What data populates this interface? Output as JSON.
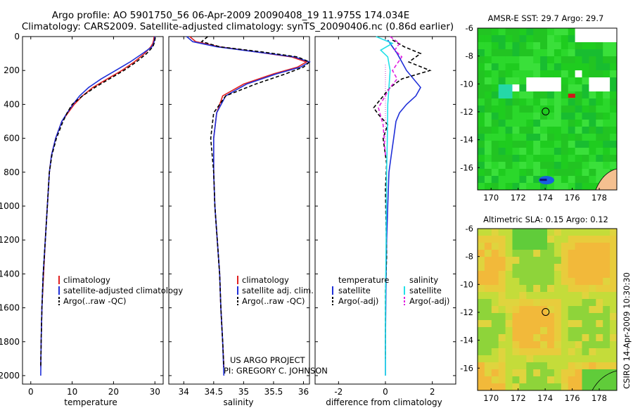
{
  "header": {
    "line1": "Argo profile: AO 5901750_56 06-Apr-2009 20090408_19 11.975S 174.034E",
    "line2": "Climatology: CARS2009. Satellite-adjusted climatology: synTS_20090406.nc (0.86d earlier)"
  },
  "footer": {
    "project": "US ARGO PROJECT",
    "pi": "PI: GREGORY C. JOHNSON",
    "stamp": "CSIRO 14-Apr-2009 10:30:30"
  },
  "colors": {
    "climatology": "#e02020",
    "satellite": "#1f2fd8",
    "argo": "#000000",
    "salinity_satellite": "#22e0e8",
    "salinity_argo": "#e020e0"
  },
  "chart_data": [
    {
      "id": "temperature",
      "type": "line",
      "xlabel": "temperature",
      "ylabel": "",
      "xlim": [
        -2,
        32
      ],
      "ylim": [
        2050,
        0
      ],
      "xticks": [
        0,
        10,
        20,
        30
      ],
      "xtick_labels": [
        "0",
        "10",
        "20",
        "30"
      ],
      "yticks": [
        0,
        200,
        400,
        600,
        800,
        1000,
        1200,
        1400,
        1600,
        1800,
        2000
      ],
      "ytick_labels": [
        "0",
        "200",
        "400",
        "600",
        "800",
        "1000",
        "1200",
        "1400",
        "1600",
        "1800",
        "2000"
      ],
      "legend": [
        "climatology",
        "satellite-adjusted climatology",
        "Argo(..raw -QC)"
      ],
      "legend_position": "lower-right",
      "series": [
        {
          "name": "climatology",
          "x": [
            29.8,
            29.7,
            29.5,
            29.0,
            27.5,
            25.0,
            22.0,
            18.5,
            15.0,
            12.5,
            10.5,
            9.0,
            7.5,
            6.0,
            5.0,
            4.5,
            4.0,
            3.5,
            3.1,
            2.7,
            2.5,
            2.4
          ],
          "y": [
            0,
            20,
            40,
            60,
            100,
            150,
            200,
            250,
            300,
            350,
            400,
            450,
            500,
            600,
            700,
            800,
            1000,
            1200,
            1400,
            1600,
            1800,
            1950
          ]
        },
        {
          "name": "satellite",
          "x": [
            30.0,
            29.9,
            29.7,
            29.3,
            27.0,
            24.0,
            20.5,
            17.0,
            14.0,
            11.8,
            10.2,
            8.8,
            7.5,
            6.0,
            5.0,
            4.5,
            4.0,
            3.5,
            3.0,
            2.7,
            2.5,
            2.4
          ],
          "y": [
            0,
            20,
            40,
            60,
            100,
            150,
            200,
            250,
            300,
            350,
            400,
            450,
            500,
            600,
            700,
            800,
            1000,
            1200,
            1400,
            1600,
            1800,
            2000
          ]
        },
        {
          "name": "Argo",
          "x": [
            30.1,
            30.0,
            29.8,
            29.5,
            28.0,
            25.5,
            22.5,
            19.0,
            15.5,
            12.5,
            10.0,
            8.8,
            7.8,
            6.2,
            5.1,
            4.5,
            4.0,
            3.5,
            3.0,
            2.7,
            2.5,
            2.4
          ],
          "y": [
            5,
            20,
            40,
            60,
            100,
            150,
            200,
            250,
            300,
            350,
            400,
            450,
            500,
            600,
            700,
            800,
            1000,
            1200,
            1400,
            1600,
            1800,
            1950
          ]
        }
      ]
    },
    {
      "id": "salinity",
      "type": "line",
      "xlabel": "salinity",
      "xlim": [
        33.75,
        36.1
      ],
      "ylim": [
        2050,
        0
      ],
      "xticks": [
        34,
        34.5,
        35,
        35.5,
        36
      ],
      "xtick_labels": [
        "34",
        "34.5",
        "35",
        "35.5",
        "36"
      ],
      "legend": [
        "climatology",
        "satellite adj. clim.",
        "Argo(..raw -QC)"
      ],
      "legend_position": "lower-right",
      "series": [
        {
          "name": "climatology",
          "x": [
            34.1,
            34.2,
            34.6,
            35.2,
            35.8,
            36.05,
            35.9,
            35.5,
            35.0,
            34.65,
            34.55,
            34.5,
            34.5,
            34.52,
            34.56,
            34.6,
            34.62,
            34.65,
            34.67
          ],
          "y": [
            0,
            30,
            60,
            90,
            120,
            150,
            180,
            220,
            280,
            350,
            450,
            600,
            800,
            1000,
            1200,
            1400,
            1600,
            1800,
            1950
          ]
        },
        {
          "name": "satellite",
          "x": [
            34.05,
            34.15,
            34.55,
            35.2,
            35.85,
            36.1,
            35.95,
            35.55,
            35.05,
            34.7,
            34.55,
            34.5,
            34.5,
            34.52,
            34.56,
            34.6,
            34.62,
            34.65,
            34.67
          ],
          "y": [
            0,
            30,
            60,
            90,
            120,
            150,
            180,
            220,
            280,
            350,
            450,
            600,
            800,
            1000,
            1200,
            1400,
            1600,
            1800,
            2000
          ]
        },
        {
          "name": "Argo",
          "x": [
            34.4,
            34.3,
            34.6,
            35.3,
            35.9,
            36.1,
            36.0,
            35.7,
            35.2,
            34.7,
            34.5,
            34.45,
            34.5,
            34.52,
            34.56,
            34.6,
            34.62,
            34.65,
            34.67
          ],
          "y": [
            0,
            30,
            60,
            90,
            120,
            150,
            180,
            220,
            280,
            350,
            450,
            600,
            800,
            1000,
            1200,
            1400,
            1600,
            1800,
            1950
          ]
        }
      ]
    },
    {
      "id": "difference",
      "type": "line",
      "xlabel": "difference from climatology",
      "xlim": [
        -3,
        3
      ],
      "ylim": [
        2050,
        0
      ],
      "xticks": [
        -2,
        0,
        2
      ],
      "xtick_labels": [
        "-2",
        "0",
        "2"
      ],
      "legend_left_title": "temperature",
      "legend_right_title": "salinity",
      "legend_left": [
        "satellite",
        "Argo(-adj)"
      ],
      "legend_right": [
        "satellite",
        "Argo(-adj)"
      ],
      "legend_position": "lower-center",
      "series": [
        {
          "name": "temperature satellite",
          "x": [
            0.1,
            0.3,
            0.5,
            0.9,
            1.5,
            1.3,
            0.9,
            0.6,
            0.45,
            0.35,
            0.25,
            0.15,
            0.1,
            0.05,
            0.02,
            0.0,
            0.0
          ],
          "y": [
            20,
            60,
            100,
            200,
            300,
            350,
            400,
            450,
            500,
            600,
            700,
            800,
            1000,
            1200,
            1500,
            1800,
            2000
          ]
        },
        {
          "name": "temperature Argo",
          "x": [
            0.3,
            0.8,
            1.5,
            1.0,
            1.9,
            0.7,
            0.2,
            -0.5,
            -0.3,
            0.1,
            -0.1,
            0.05,
            0.0,
            0.05,
            0.0,
            0.0
          ],
          "y": [
            20,
            60,
            100,
            150,
            200,
            250,
            300,
            420,
            460,
            520,
            600,
            750,
            900,
            1300,
            1500,
            1900
          ]
        },
        {
          "name": "salinity satellite",
          "x": [
            -0.4,
            0.3,
            -0.2,
            0.1,
            0.2,
            0.15,
            0.1,
            0.08,
            0.05,
            0.03,
            0.0,
            0.0
          ],
          "y": [
            0,
            40,
            80,
            120,
            200,
            300,
            400,
            600,
            800,
            1200,
            1600,
            2000
          ]
        },
        {
          "name": "salinity Argo",
          "x": [
            0.2,
            0.6,
            0.4,
            0.7,
            0.3,
            0.5,
            0.2,
            -0.3,
            -0.1,
            0.0
          ],
          "y": [
            0,
            40,
            80,
            120,
            200,
            250,
            300,
            420,
            520,
            700
          ]
        }
      ]
    },
    {
      "id": "amsr-sst",
      "type": "heatmap",
      "title": "AMSR-E SST: 29.7 Argo: 29.7",
      "xlim": [
        169,
        179.3
      ],
      "ylim": [
        -17.6,
        -6
      ],
      "xticks": [
        170,
        172,
        174,
        176,
        178
      ],
      "xtick_labels": [
        "170",
        "172",
        "174",
        "176",
        "178"
      ],
      "yticks": [
        -6,
        -8,
        -10,
        -12,
        -14,
        -16
      ],
      "ytick_labels": [
        "-6",
        "-8",
        "-10",
        "-12",
        "-14",
        "-16"
      ],
      "marker": {
        "lon": 174.034,
        "lat": -11.975
      }
    },
    {
      "id": "altimetric-sla",
      "type": "heatmap",
      "title": "Altimetric SLA: 0.15 Argo: 0.12",
      "xlim": [
        169,
        179.3
      ],
      "ylim": [
        -17.6,
        -6
      ],
      "xticks": [
        170,
        172,
        174,
        176,
        178
      ],
      "xtick_labels": [
        "170",
        "172",
        "174",
        "176",
        "178"
      ],
      "yticks": [
        -6,
        -8,
        -10,
        -12,
        -14,
        -16
      ],
      "ytick_labels": [
        "-6",
        "-8",
        "-10",
        "-12",
        "-14",
        "-16"
      ],
      "marker": {
        "lon": 174.034,
        "lat": -11.975
      }
    }
  ]
}
